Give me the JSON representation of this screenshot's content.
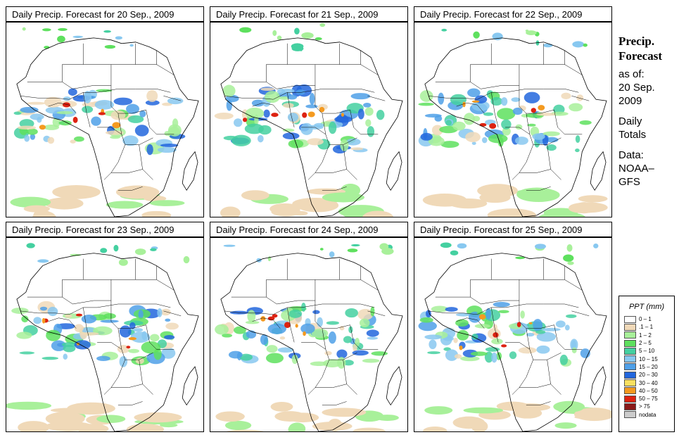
{
  "panels": [
    {
      "title": "Daily Precip. Forecast for  20 Sep., 2009"
    },
    {
      "title": "Daily Precip. Forecast for  21 Sep., 2009"
    },
    {
      "title": "Daily Precip. Forecast for  22 Sep., 2009"
    },
    {
      "title": "Daily Precip. Forecast for  23 Sep., 2009"
    },
    {
      "title": "Daily Precip. Forecast for  24 Sep., 2009"
    },
    {
      "title": "Daily Precip. Forecast for  25 Sep., 2009"
    }
  ],
  "sidebar": {
    "heading1": "Precip.",
    "heading2": "Forecast",
    "asof_label": "as of:",
    "asof_date1": "20 Sep.",
    "asof_date2": "2009",
    "totals1": "Daily",
    "totals2": "Totals",
    "data1": "Data:",
    "data2": "NOAA–",
    "data3": "GFS"
  },
  "legend": {
    "title": "PPT (mm)",
    "items": [
      {
        "label": "0 – 1",
        "color": "#ffffff"
      },
      {
        "label": ".1 – 1",
        "color": "#f0d9b8"
      },
      {
        "label": "1 – 2",
        "color": "#a8f09a"
      },
      {
        "label": "2 – 5",
        "color": "#5ee05e"
      },
      {
        "label": "5 – 10",
        "color": "#44d0a0"
      },
      {
        "label": "10 – 15",
        "color": "#88c8f0"
      },
      {
        "label": "15 – 20",
        "color": "#4fa0e8"
      },
      {
        "label": "20 – 30",
        "color": "#2266dd"
      },
      {
        "label": "30 – 40",
        "color": "#f8e060"
      },
      {
        "label": "40 – 50",
        "color": "#f49a20"
      },
      {
        "label": "50 – 75",
        "color": "#dd2211"
      },
      {
        "label": "> 75",
        "color": "#8a1a1a"
      },
      {
        "label": "nodata",
        "color": "#cccccc"
      }
    ]
  }
}
